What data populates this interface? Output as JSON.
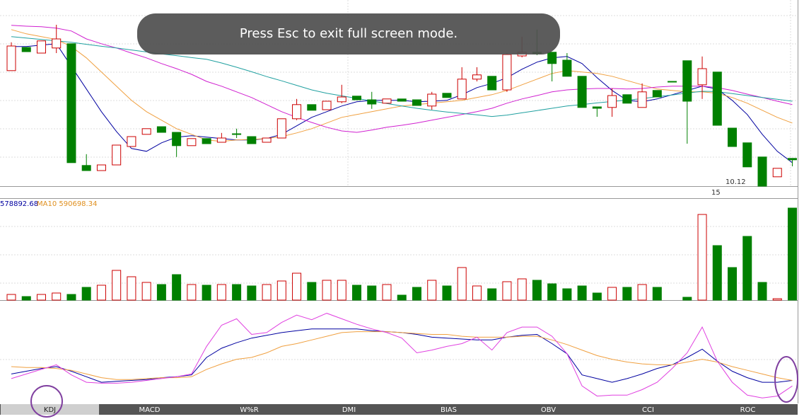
{
  "toast": "Press Esc to exit full screen mode.",
  "chart_data": {
    "type": "candlestick",
    "ylim": [
      9.97,
      16.42
    ],
    "up_color": "#cc0000",
    "down_color": "#008000",
    "candles": [
      [
        14.05,
        15.05,
        14.05,
        14.92
      ],
      [
        14.87,
        14.87,
        14.72,
        14.72
      ],
      [
        14.67,
        15.1,
        14.67,
        15.1
      ],
      [
        14.85,
        15.67,
        14.67,
        15.17
      ],
      [
        15.0,
        15.0,
        10.8,
        10.8
      ],
      [
        10.7,
        11.1,
        10.52,
        10.52
      ],
      [
        10.52,
        10.72,
        10.52,
        10.72
      ],
      [
        10.72,
        11.42,
        10.72,
        11.42
      ],
      [
        11.37,
        11.72,
        11.37,
        11.72
      ],
      [
        11.8,
        12.0,
        11.8,
        12.0
      ],
      [
        12.07,
        12.07,
        11.87,
        11.87
      ],
      [
        11.87,
        11.87,
        11.0,
        11.4
      ],
      [
        11.4,
        11.65,
        11.4,
        11.65
      ],
      [
        11.65,
        11.65,
        11.47,
        11.47
      ],
      [
        11.52,
        11.85,
        11.52,
        11.67
      ],
      [
        11.82,
        12.0,
        11.67,
        11.82
      ],
      [
        11.72,
        11.72,
        11.47,
        11.47
      ],
      [
        11.52,
        11.67,
        11.52,
        11.67
      ],
      [
        11.67,
        12.35,
        11.67,
        12.35
      ],
      [
        12.35,
        13.05,
        12.3,
        12.85
      ],
      [
        12.85,
        12.85,
        12.65,
        12.65
      ],
      [
        12.67,
        12.97,
        12.67,
        12.97
      ],
      [
        12.95,
        13.55,
        12.9,
        13.12
      ],
      [
        13.15,
        13.15,
        13.02,
        13.02
      ],
      [
        13.02,
        13.3,
        12.7,
        12.87
      ],
      [
        12.9,
        13.05,
        12.9,
        13.05
      ],
      [
        13.05,
        13.05,
        12.97,
        12.97
      ],
      [
        13.02,
        13.02,
        12.82,
        12.82
      ],
      [
        12.8,
        13.3,
        12.67,
        13.22
      ],
      [
        13.25,
        13.25,
        13.1,
        13.1
      ],
      [
        13.05,
        14.17,
        13.05,
        13.75
      ],
      [
        13.75,
        14.17,
        13.67,
        13.9
      ],
      [
        13.85,
        13.85,
        13.37,
        13.37
      ],
      [
        13.37,
        14.67,
        13.3,
        14.62
      ],
      [
        14.57,
        15.25,
        14.52,
        14.7
      ],
      [
        14.7,
        15.5,
        14.6,
        14.65
      ],
      [
        14.7,
        14.7,
        13.67,
        14.3
      ],
      [
        14.42,
        14.67,
        13.85,
        13.85
      ],
      [
        13.85,
        13.85,
        12.75,
        12.75
      ],
      [
        12.77,
        12.77,
        12.42,
        12.72
      ],
      [
        12.75,
        13.42,
        12.42,
        13.17
      ],
      [
        13.2,
        13.2,
        12.9,
        12.9
      ],
      [
        12.75,
        13.6,
        12.75,
        13.3
      ],
      [
        13.35,
        13.35,
        13.12,
        13.12
      ],
      [
        13.67,
        13.67,
        13.67,
        13.67
      ],
      [
        14.4,
        14.4,
        11.47,
        12.97
      ],
      [
        13.55,
        14.55,
        13.05,
        14.12
      ],
      [
        14.0,
        14.0,
        12.12,
        12.12
      ],
      [
        12.02,
        12.02,
        11.37,
        11.37
      ],
      [
        11.5,
        11.5,
        10.65,
        10.65
      ],
      [
        11.0,
        11.0,
        9.97,
        9.97
      ],
      [
        10.3,
        10.6,
        10.3,
        10.6
      ],
      [
        10.95,
        10.95,
        10.67,
        10.9
      ]
    ],
    "ma": [
      {
        "color": "#0000a0",
        "values": [
          14.9,
          14.9,
          14.95,
          15.0,
          14.2,
          13.4,
          12.6,
          11.9,
          11.3,
          11.2,
          11.5,
          11.7,
          11.75,
          11.7,
          11.65,
          11.6,
          11.6,
          11.65,
          11.8,
          12.1,
          12.4,
          12.6,
          12.8,
          12.95,
          13.0,
          13.0,
          13.0,
          12.95,
          12.97,
          13.0,
          13.2,
          13.45,
          13.6,
          13.8,
          14.1,
          14.35,
          14.5,
          14.55,
          14.3,
          13.8,
          13.35,
          13.0,
          12.95,
          13.05,
          13.2,
          13.35,
          13.5,
          13.4,
          13.0,
          12.5,
          11.8,
          11.2,
          10.8
        ]
      },
      {
        "color": "#f0a040",
        "values": [
          15.5,
          15.35,
          15.25,
          15.15,
          14.9,
          14.5,
          14.0,
          13.5,
          13.0,
          12.6,
          12.3,
          12.0,
          11.8,
          11.6,
          11.55,
          11.6,
          11.62,
          11.65,
          11.72,
          11.85,
          12.0,
          12.2,
          12.4,
          12.5,
          12.6,
          12.7,
          12.8,
          12.85,
          12.9,
          12.95,
          13.0,
          13.1,
          13.2,
          13.35,
          13.55,
          13.75,
          13.95,
          14.05,
          14.0,
          13.95,
          13.85,
          13.7,
          13.55,
          13.4,
          13.35,
          13.3,
          13.3,
          13.25,
          13.1,
          12.9,
          12.65,
          12.4,
          12.2
        ]
      },
      {
        "color": "#d020d0",
        "values": [
          15.65,
          15.62,
          15.6,
          15.55,
          15.45,
          15.17,
          15.0,
          14.85,
          14.67,
          14.5,
          14.3,
          14.12,
          13.92,
          13.67,
          13.5,
          13.3,
          13.1,
          12.85,
          12.6,
          12.4,
          12.22,
          12.05,
          11.92,
          11.87,
          11.95,
          12.05,
          12.12,
          12.2,
          12.3,
          12.4,
          12.5,
          12.6,
          12.72,
          12.9,
          13.05,
          13.17,
          13.3,
          13.37,
          13.4,
          13.42,
          13.42,
          13.4,
          13.42,
          13.47,
          13.5,
          13.5,
          13.5,
          13.45,
          13.35,
          13.22,
          13.1,
          12.97,
          12.85
        ]
      },
      {
        "color": "#20a0a0",
        "values": [
          15.25,
          15.2,
          15.15,
          15.1,
          15.05,
          14.98,
          14.91,
          14.85,
          14.78,
          14.71,
          14.64,
          14.58,
          14.51,
          14.45,
          14.32,
          14.17,
          14.01,
          13.84,
          13.69,
          13.53,
          13.37,
          13.25,
          13.16,
          13.07,
          12.98,
          12.89,
          12.8,
          12.72,
          12.65,
          12.59,
          12.54,
          12.49,
          12.43,
          12.48,
          12.56,
          12.64,
          12.72,
          12.8,
          12.85,
          12.91,
          12.96,
          13.01,
          13.06,
          13.13,
          13.19,
          13.26,
          13.32,
          13.31,
          13.24,
          13.17,
          13.1,
          13.04,
          12.97
        ]
      }
    ],
    "low_label": 10.12,
    "date_label": "15",
    "volume": {
      "ma5_label": "578892.68",
      "ma10_label": "MA10 590698.34",
      "ylim": [
        0,
        4032000
      ],
      "values": [
        224000,
        140000,
        224000,
        280000,
        224000,
        504000,
        588000,
        1176000,
        924000,
        700000,
        616000,
        1008000,
        616000,
        588000,
        616000,
        616000,
        560000,
        616000,
        756000,
        1064000,
        700000,
        784000,
        784000,
        588000,
        560000,
        616000,
        196000,
        504000,
        784000,
        560000,
        1288000,
        560000,
        448000,
        728000,
        840000,
        784000,
        644000,
        448000,
        560000,
        280000,
        504000,
        504000,
        616000,
        504000,
        0,
        112000,
        3388000,
        2156000,
        1288000,
        2520000,
        700000,
        56000,
        3640000
      ]
    },
    "kdj": {
      "ylim": [
        0,
        100
      ],
      "series": [
        {
          "color": "#0000a0",
          "values": [
            32,
            35,
            38,
            40,
            35,
            29,
            23,
            24,
            25,
            26,
            28,
            29,
            31,
            50,
            60,
            66,
            71,
            74,
            77,
            79,
            81,
            81,
            81,
            81,
            79,
            78,
            77,
            75,
            72,
            71,
            70,
            69,
            69,
            72,
            74,
            75,
            65,
            54,
            31,
            27,
            23,
            27,
            32,
            38,
            42,
            50,
            59,
            46,
            35,
            28,
            23,
            23,
            25
          ]
        },
        {
          "color": "#f0a040",
          "values": [
            40,
            39,
            39,
            38,
            36,
            32,
            28,
            26,
            26,
            27,
            28,
            28,
            29,
            37,
            43,
            48,
            50,
            55,
            62,
            65,
            69,
            73,
            77,
            78,
            78,
            78,
            77,
            76,
            75,
            75,
            73,
            72,
            72,
            72,
            73,
            73,
            69,
            64,
            58,
            52,
            48,
            45,
            43,
            42,
            42,
            45,
            48,
            45,
            40,
            36,
            32,
            28,
            25
          ]
        },
        {
          "color": "#e040e0",
          "values": [
            27,
            32,
            37,
            42,
            31,
            23,
            22,
            22,
            23,
            25,
            27,
            29,
            32,
            62,
            85,
            92,
            75,
            77,
            88,
            96,
            91,
            98,
            92,
            86,
            81,
            77,
            71,
            55,
            58,
            62,
            65,
            72,
            58,
            77,
            83,
            83,
            73,
            54,
            19,
            8,
            9,
            9,
            15,
            23,
            38,
            55,
            83,
            46,
            23,
            9,
            6,
            8,
            19
          ]
        }
      ]
    },
    "tabs": [
      "KDJ",
      "MACD",
      "W%R",
      "DMI",
      "BIAS",
      "OBV",
      "CCI",
      "ROC"
    ]
  }
}
